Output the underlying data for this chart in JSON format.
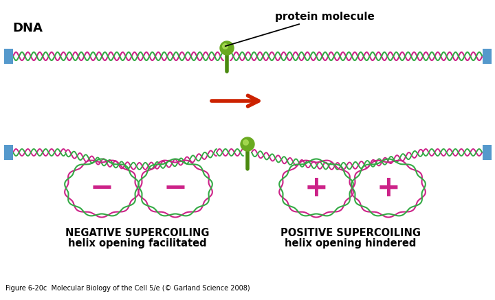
{
  "bg_color": "#ffffff",
  "dna_color1": "#cc2288",
  "dna_color2": "#33aa44",
  "protein_color": "#6aaa20",
  "protein_stem_color": "#4a8a10",
  "anchor_color": "#5599cc",
  "arrow_color": "#cc2200",
  "sign_color": "#cc2288",
  "title_dna": "DNA",
  "label_protein": "protein molecule",
  "label_neg_title": "NEGATIVE SUPERCOILING",
  "label_neg_sub": "helix opening facilitated",
  "label_pos_title": "POSITIVE SUPERCOILING",
  "label_pos_sub": "helix opening hindered",
  "caption": "Figure 6-20c  Molecular Biology of the Cell 5/e (© Garland Science 2008)",
  "figsize": [
    7.2,
    4.37
  ],
  "dpi": 100
}
